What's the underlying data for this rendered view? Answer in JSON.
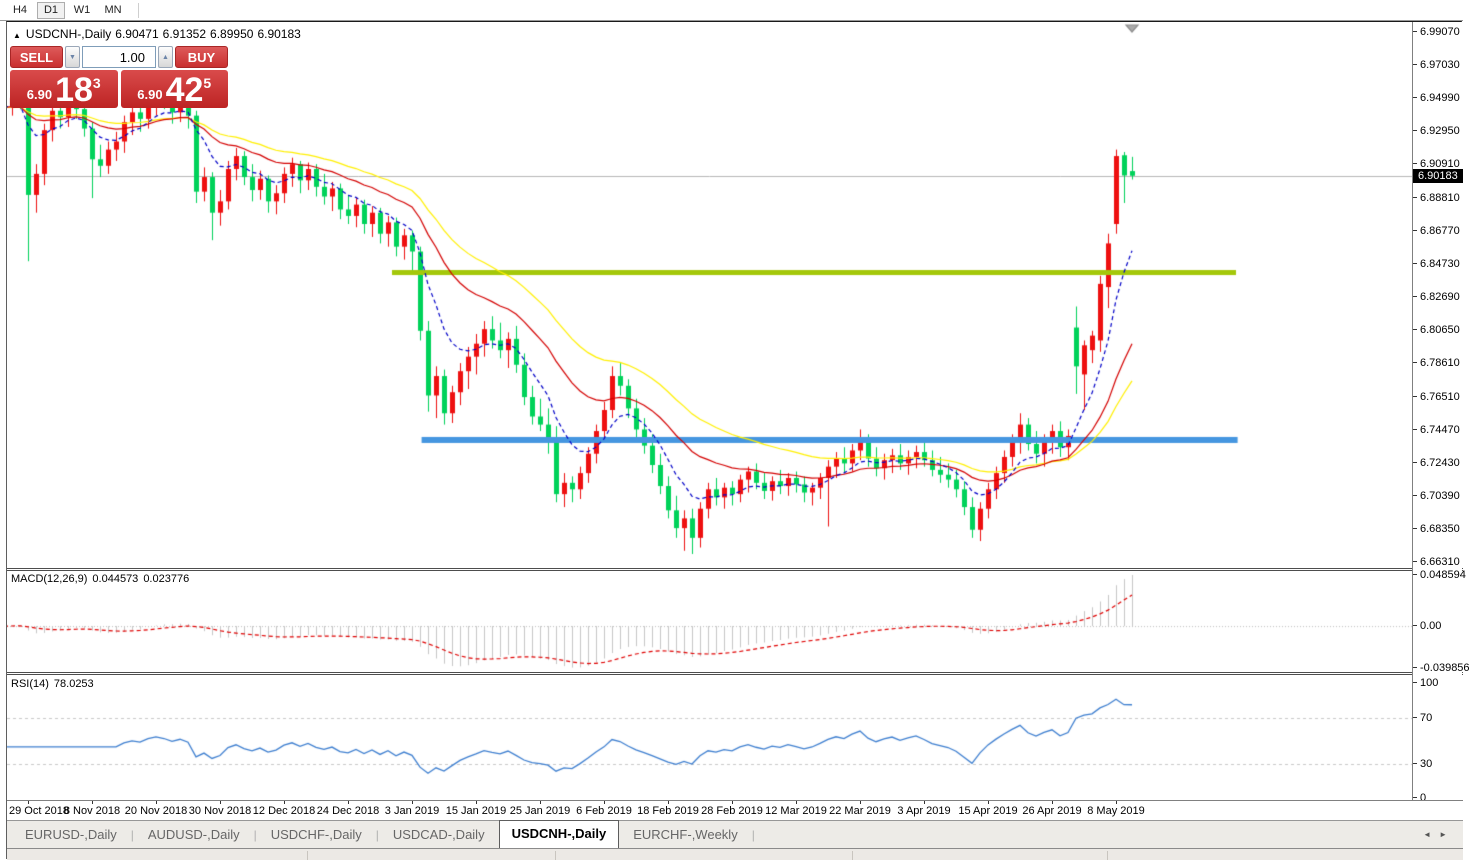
{
  "toolbar": {
    "timeframes": [
      {
        "label": "H4",
        "active": false
      },
      {
        "label": "D1",
        "active": true
      },
      {
        "label": "W1",
        "active": false
      },
      {
        "label": "MN",
        "active": false
      }
    ]
  },
  "title": {
    "collapse_icon": "▲",
    "symbol": "USDCNH-,Daily",
    "open": "6.90471",
    "high": "6.91352",
    "low": "6.89950",
    "close": "6.90183"
  },
  "one_click": {
    "sell_label": "SELL",
    "buy_label": "BUY",
    "volume": "1.00",
    "spinner_down_icon": "▼",
    "spinner_up_icon": "▲",
    "sell_prefix": "6.90",
    "sell_big": "18",
    "sell_sup": "3",
    "buy_prefix": "6.90",
    "buy_big": "42",
    "buy_sup": "5"
  },
  "price_axis": {
    "ticks": [
      "6.99070",
      "6.97030",
      "6.94990",
      "6.92950",
      "6.90910",
      "6.88810",
      "6.86770",
      "6.84730",
      "6.82690",
      "6.80650",
      "6.78610",
      "6.76510",
      "6.74470",
      "6.72430",
      "6.70390",
      "6.68350",
      "6.66310"
    ],
    "current_price": "6.90183"
  },
  "macd_panel": {
    "label": "MACD(12,26,9)",
    "value_main": "0.044573",
    "value_signal": "0.023776",
    "axis_labels": [
      "0.048594",
      "0.00",
      "-0.039856"
    ],
    "axis_values": [
      0.048594,
      0,
      -0.039856
    ]
  },
  "rsi_panel": {
    "label": "RSI(14)",
    "value": "78.0253",
    "axis_labels": [
      "100",
      "70",
      "30",
      "0"
    ],
    "axis_values": [
      100,
      70,
      30,
      0
    ],
    "levels": [
      70,
      30
    ]
  },
  "time_axis": {
    "first_index": 3,
    "step": 8,
    "labels": [
      "29 Oct 2018",
      "8 Nov 2018",
      "20 Nov 2018",
      "30 Nov 2018",
      "12 Dec 2018",
      "24 Dec 2018",
      "3 Jan 2019",
      "15 Jan 2019",
      "25 Jan 2019",
      "6 Feb 2019",
      "18 Feb 2019",
      "28 Feb 2019",
      "12 Mar 2019",
      "22 Mar 2019",
      "3 Apr 2019",
      "15 Apr 2019",
      "26 Apr 2019",
      "8 May 2019"
    ]
  },
  "tabs": {
    "separator": "|",
    "nav_left_icon": "◄",
    "nav_right_icon": "►",
    "items": [
      {
        "label": "EURUSD-,Daily",
        "active": false
      },
      {
        "label": "AUDUSD-,Daily",
        "active": false
      },
      {
        "label": "USDCHF-,Daily",
        "active": false
      },
      {
        "label": "USDCAD-,Daily",
        "active": false
      },
      {
        "label": "USDCNH-,Daily",
        "active": true
      },
      {
        "label": "EURCHF-,Weekly",
        "active": false
      }
    ]
  },
  "chart_data": {
    "type": "candlestick",
    "symbol": "USDCNH-",
    "timeframe": "Daily",
    "color_scheme": "red-up-green-down",
    "colors": {
      "up": "#ee1010",
      "down": "#00d25a",
      "current_price_line": "#b6b6b6",
      "macd_histogram": "#c6c6c6",
      "macd_signal": "#e00000",
      "rsi_line": "#3e7fd0"
    },
    "current_price": 6.90183,
    "price_top_tick": 6.9907,
    "candles": [
      [
        6.94,
        6.952,
        6.934,
        6.944
      ],
      [
        6.944,
        6.955,
        6.939,
        6.95
      ],
      [
        6.95,
        6.957,
        6.943,
        6.947
      ],
      [
        6.947,
        6.951,
        6.849,
        6.89
      ],
      [
        6.89,
        6.909,
        6.879,
        6.903
      ],
      [
        6.903,
        6.934,
        6.896,
        6.93
      ],
      [
        6.93,
        6.946,
        6.923,
        6.942
      ],
      [
        6.942,
        6.949,
        6.931,
        6.938
      ],
      [
        6.938,
        6.956,
        6.932,
        6.949
      ],
      [
        6.949,
        6.954,
        6.937,
        6.943
      ],
      [
        6.943,
        6.948,
        6.926,
        6.931
      ],
      [
        6.931,
        6.935,
        6.888,
        6.912
      ],
      [
        6.912,
        6.921,
        6.901,
        6.908
      ],
      [
        6.908,
        6.923,
        6.903,
        6.918
      ],
      [
        6.918,
        6.929,
        6.911,
        6.923
      ],
      [
        6.923,
        6.939,
        6.916,
        6.935
      ],
      [
        6.935,
        6.945,
        6.927,
        6.941
      ],
      [
        6.941,
        6.946,
        6.929,
        6.937
      ],
      [
        6.937,
        6.951,
        6.931,
        6.947
      ],
      [
        6.947,
        6.957,
        6.939,
        6.952
      ],
      [
        6.952,
        6.959,
        6.943,
        6.948
      ],
      [
        6.948,
        6.954,
        6.934,
        6.941
      ],
      [
        6.941,
        6.951,
        6.935,
        6.946
      ],
      [
        6.946,
        6.95,
        6.931,
        6.939
      ],
      [
        6.939,
        6.942,
        6.885,
        6.892
      ],
      [
        6.892,
        6.907,
        6.886,
        6.901
      ],
      [
        6.901,
        6.904,
        6.862,
        6.879
      ],
      [
        6.879,
        6.893,
        6.871,
        6.886
      ],
      [
        6.886,
        6.911,
        6.881,
        6.906
      ],
      [
        6.906,
        6.919,
        6.899,
        6.914
      ],
      [
        6.914,
        6.917,
        6.896,
        6.901
      ],
      [
        6.901,
        6.909,
        6.886,
        6.893
      ],
      [
        6.893,
        6.905,
        6.887,
        6.9
      ],
      [
        6.9,
        6.902,
        6.879,
        6.886
      ],
      [
        6.886,
        6.896,
        6.878,
        6.891
      ],
      [
        6.891,
        6.907,
        6.885,
        6.903
      ],
      [
        6.903,
        6.913,
        6.895,
        6.909
      ],
      [
        6.909,
        6.911,
        6.891,
        6.899
      ],
      [
        6.899,
        6.91,
        6.893,
        6.906
      ],
      [
        6.906,
        6.909,
        6.889,
        6.895
      ],
      [
        6.895,
        6.903,
        6.884,
        6.889
      ],
      [
        6.889,
        6.898,
        6.88,
        6.894
      ],
      [
        6.894,
        6.897,
        6.875,
        6.881
      ],
      [
        6.881,
        6.89,
        6.872,
        6.877
      ],
      [
        6.877,
        6.888,
        6.87,
        6.884
      ],
      [
        6.884,
        6.887,
        6.866,
        6.872
      ],
      [
        6.872,
        6.883,
        6.864,
        6.879
      ],
      [
        6.879,
        6.882,
        6.86,
        6.866
      ],
      [
        6.866,
        6.877,
        6.858,
        6.873
      ],
      [
        6.873,
        6.876,
        6.852,
        6.858
      ],
      [
        6.858,
        6.869,
        6.85,
        6.865
      ],
      [
        6.865,
        6.868,
        6.842,
        6.855
      ],
      [
        6.855,
        6.858,
        6.8,
        6.806
      ],
      [
        6.806,
        6.812,
        6.756,
        6.766
      ],
      [
        6.766,
        6.784,
        6.752,
        6.778
      ],
      [
        6.778,
        6.782,
        6.748,
        6.755
      ],
      [
        6.755,
        6.772,
        6.749,
        6.768
      ],
      [
        6.768,
        6.786,
        6.76,
        6.781
      ],
      [
        6.781,
        6.796,
        6.77,
        6.79
      ],
      [
        6.79,
        6.804,
        6.779,
        6.798
      ],
      [
        6.798,
        6.812,
        6.79,
        6.807
      ],
      [
        6.807,
        6.815,
        6.795,
        6.8
      ],
      [
        6.8,
        6.811,
        6.789,
        6.794
      ],
      [
        6.794,
        6.805,
        6.783,
        6.801
      ],
      [
        6.801,
        6.809,
        6.78,
        6.785
      ],
      [
        6.785,
        6.792,
        6.76,
        6.765
      ],
      [
        6.765,
        6.772,
        6.748,
        6.753
      ],
      [
        6.753,
        6.764,
        6.744,
        6.748
      ],
      [
        6.748,
        6.758,
        6.73,
        6.74
      ],
      [
        6.74,
        6.747,
        6.7,
        6.705
      ],
      [
        6.705,
        6.718,
        6.697,
        6.712
      ],
      [
        6.712,
        6.716,
        6.7,
        6.708
      ],
      [
        6.708,
        6.722,
        6.702,
        6.718
      ],
      [
        6.718,
        6.734,
        6.712,
        6.73
      ],
      [
        6.73,
        6.748,
        6.724,
        6.744
      ],
      [
        6.744,
        6.762,
        6.738,
        6.757
      ],
      [
        6.757,
        6.784,
        6.752,
        6.778
      ],
      [
        6.778,
        6.786,
        6.766,
        6.772
      ],
      [
        6.772,
        6.776,
        6.752,
        6.758
      ],
      [
        6.758,
        6.764,
        6.74,
        6.745
      ],
      [
        6.745,
        6.752,
        6.73,
        6.735
      ],
      [
        6.735,
        6.742,
        6.718,
        6.723
      ],
      [
        6.723,
        6.73,
        6.705,
        6.71
      ],
      [
        6.71,
        6.716,
        6.69,
        6.695
      ],
      [
        6.695,
        6.704,
        6.678,
        6.684
      ],
      [
        6.684,
        6.695,
        6.67,
        6.69
      ],
      [
        6.69,
        6.696,
        6.668,
        6.678
      ],
      [
        6.678,
        6.7,
        6.672,
        6.696
      ],
      [
        6.696,
        6.712,
        6.69,
        6.708
      ],
      [
        6.708,
        6.715,
        6.698,
        6.703
      ],
      [
        6.703,
        6.712,
        6.696,
        6.709
      ],
      [
        6.709,
        6.713,
        6.698,
        6.705
      ],
      [
        6.705,
        6.717,
        6.7,
        6.714
      ],
      [
        6.714,
        6.722,
        6.706,
        6.719
      ],
      [
        6.719,
        6.724,
        6.708,
        6.712
      ],
      [
        6.712,
        6.718,
        6.702,
        6.707
      ],
      [
        6.707,
        6.716,
        6.701,
        6.713
      ],
      [
        6.713,
        6.72,
        6.705,
        6.71
      ],
      [
        6.71,
        6.718,
        6.704,
        6.715
      ],
      [
        6.715,
        6.719,
        6.706,
        6.711
      ],
      [
        6.711,
        6.716,
        6.7,
        6.706
      ],
      [
        6.706,
        6.712,
        6.698,
        6.709
      ],
      [
        6.709,
        6.718,
        6.702,
        6.715
      ],
      [
        6.715,
        6.726,
        6.685,
        6.722
      ],
      [
        6.722,
        6.731,
        6.715,
        6.727
      ],
      [
        6.727,
        6.734,
        6.718,
        6.724
      ],
      [
        6.724,
        6.736,
        6.719,
        6.732
      ],
      [
        6.732,
        6.745,
        6.726,
        6.738
      ],
      [
        6.738,
        6.742,
        6.722,
        6.727
      ],
      [
        6.727,
        6.734,
        6.716,
        6.721
      ],
      [
        6.721,
        6.73,
        6.714,
        6.726
      ],
      [
        6.726,
        6.733,
        6.718,
        6.729
      ],
      [
        6.729,
        6.736,
        6.72,
        6.724
      ],
      [
        6.724,
        6.732,
        6.717,
        6.728
      ],
      [
        6.728,
        6.735,
        6.721,
        6.731
      ],
      [
        6.731,
        6.737,
        6.722,
        6.726
      ],
      [
        6.726,
        6.732,
        6.716,
        6.72
      ],
      [
        6.72,
        6.728,
        6.712,
        6.717
      ],
      [
        6.717,
        6.724,
        6.709,
        6.714
      ],
      [
        6.714,
        6.72,
        6.703,
        6.708
      ],
      [
        6.708,
        6.713,
        6.692,
        6.697
      ],
      [
        6.697,
        6.703,
        6.678,
        6.683
      ],
      [
        6.683,
        6.7,
        6.676,
        6.696
      ],
      [
        6.696,
        6.712,
        6.69,
        6.708
      ],
      [
        6.708,
        6.722,
        6.702,
        6.718
      ],
      [
        6.718,
        6.732,
        6.712,
        6.728
      ],
      [
        6.728,
        6.742,
        6.722,
        6.738
      ],
      [
        6.738,
        6.755,
        6.73,
        6.748
      ],
      [
        6.748,
        6.752,
        6.732,
        6.736
      ],
      [
        6.736,
        6.744,
        6.724,
        6.73
      ],
      [
        6.73,
        6.742,
        6.722,
        6.738
      ],
      [
        6.738,
        6.748,
        6.73,
        6.744
      ],
      [
        6.744,
        6.75,
        6.728,
        6.734
      ],
      [
        6.734,
        6.745,
        6.726,
        6.741
      ],
      [
        6.808,
        6.821,
        6.767,
        6.784
      ],
      [
        6.779,
        6.8,
        6.757,
        6.797
      ],
      [
        6.794,
        6.806,
        6.786,
        6.803
      ],
      [
        6.8,
        6.84,
        6.793,
        6.835
      ],
      [
        6.833,
        6.866,
        6.82,
        6.86
      ],
      [
        6.872,
        6.918,
        6.866,
        6.914
      ],
      [
        6.9145,
        6.9165,
        6.885,
        6.902
      ],
      [
        6.90471,
        6.91352,
        6.8995,
        6.90183
      ]
    ],
    "moving_averages": [
      {
        "period": 34,
        "color": "#fff000",
        "style": "solid"
      },
      {
        "period": 21,
        "color": "#d40000",
        "style": "solid"
      },
      {
        "period": 8,
        "color": "#0000c8",
        "style": "dashed"
      }
    ],
    "levels": [
      {
        "name": "resistance-line",
        "price": 6.842,
        "color": "#a4c80a",
        "thickness": 5,
        "from_index": 48.5,
        "to_index": 154.0
      },
      {
        "name": "support-line",
        "price": 6.7385,
        "color": "#4596e0",
        "thickness": 6,
        "from_index": 52.2,
        "to_index": 154.2
      }
    ],
    "marker": {
      "shape": "triangle-down",
      "index": 141,
      "color": "#ababab"
    }
  }
}
